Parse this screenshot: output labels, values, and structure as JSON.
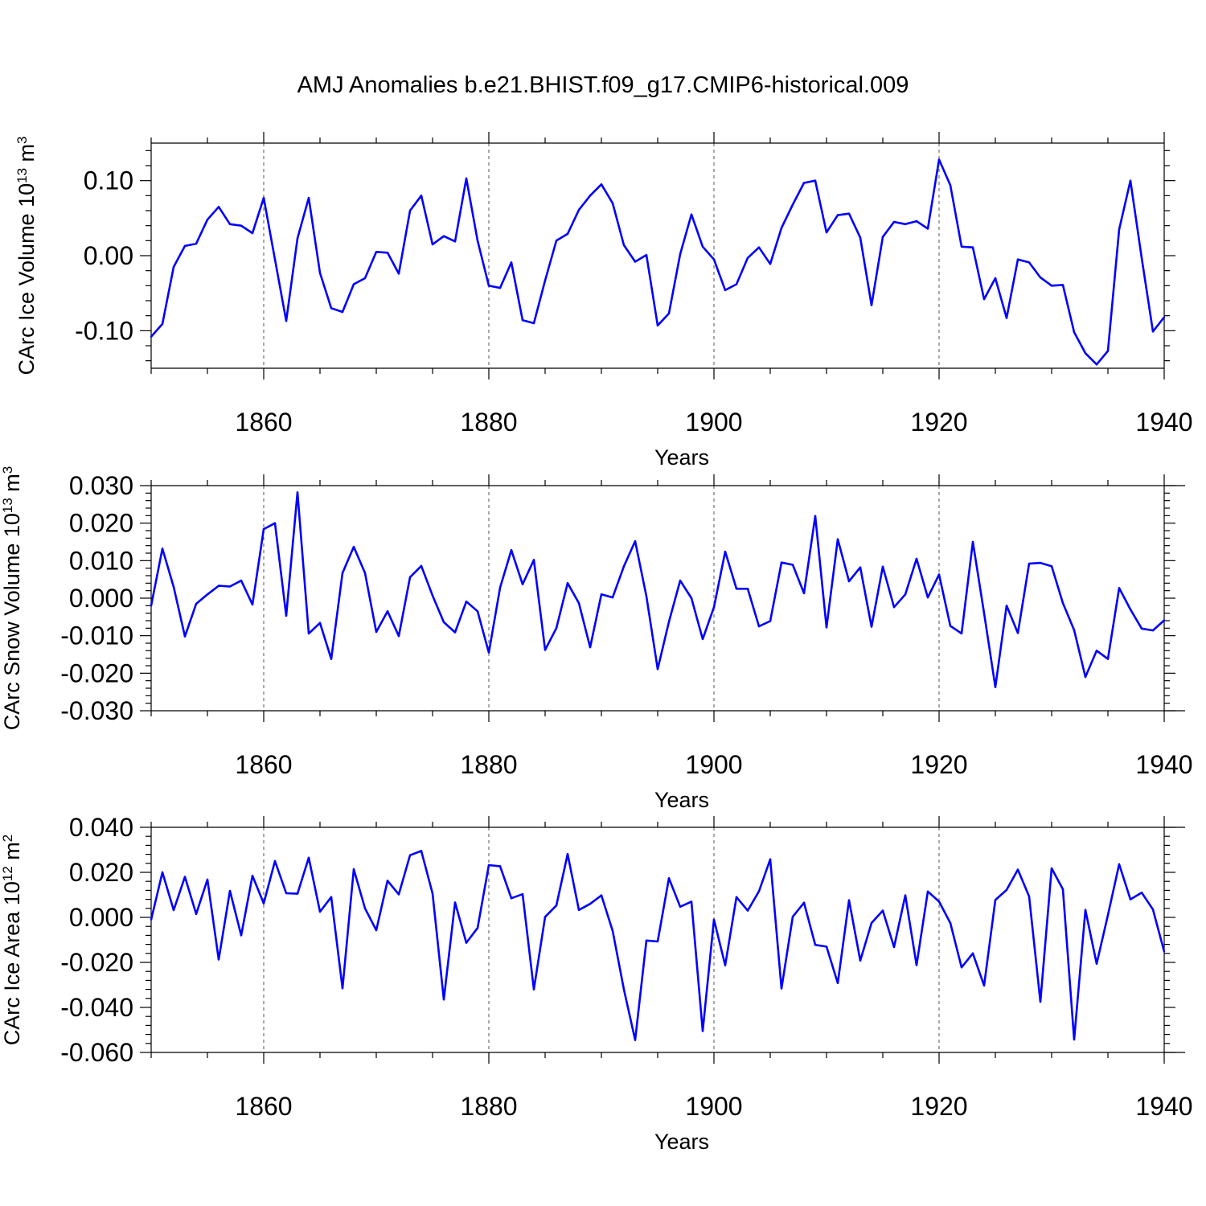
{
  "title": "AMJ Anomalies b.e21.BHIST.f09_g17.CMIP6-historical.009",
  "style": {
    "line_color": "#0000ff",
    "axis_color": "#000000",
    "grid_color": "#555555"
  },
  "chart_data": [
    {
      "type": "line",
      "ylabel_main": "CArc Ice Volume 10",
      "ylabel_exp": "13",
      "ylabel_unit": " m",
      "ylabel_unit_exp": "3",
      "xlabel": "Years",
      "xlim": [
        1850,
        1940
      ],
      "ylim": [
        -0.15,
        0.15
      ],
      "yticks": [
        -0.1,
        0.0,
        0.1
      ],
      "ytick_labels": [
        "-0.10",
        "0.00",
        "0.10"
      ],
      "xticks": [
        1860,
        1880,
        1900,
        1920,
        1940
      ],
      "xtick_labels": [
        "1860",
        "1880",
        "1900",
        "1920",
        "1940"
      ],
      "x_start": 1850,
      "values": [
        -0.108,
        -0.091,
        -0.015,
        0.013,
        0.016,
        0.048,
        0.065,
        0.042,
        0.04,
        0.03,
        0.077,
        -0.005,
        -0.087,
        0.023,
        0.077,
        -0.023,
        -0.07,
        -0.075,
        -0.038,
        -0.03,
        0.005,
        0.004,
        -0.024,
        0.06,
        0.08,
        0.015,
        0.026,
        0.019,
        0.103,
        0.02,
        -0.04,
        -0.043,
        -0.009,
        -0.086,
        -0.09,
        -0.033,
        0.02,
        0.029,
        0.061,
        0.08,
        0.095,
        0.07,
        0.014,
        -0.008,
        0.001,
        -0.093,
        -0.077,
        0.002,
        0.055,
        0.012,
        -0.005,
        -0.046,
        -0.038,
        -0.003,
        0.011,
        -0.011,
        0.037,
        0.068,
        0.097,
        0.1,
        0.031,
        0.054,
        0.056,
        0.024,
        -0.066,
        0.025,
        0.045,
        0.042,
        0.046,
        0.036,
        0.128,
        0.094,
        0.012,
        0.011,
        -0.058,
        -0.03,
        -0.083,
        -0.005,
        -0.009,
        -0.029,
        -0.04,
        -0.039,
        -0.102,
        -0.13,
        -0.145,
        -0.127,
        0.035,
        0.1,
        -0.003,
        -0.101,
        -0.082
      ]
    },
    {
      "type": "line",
      "ylabel_main": "CArc Snow Volume 10",
      "ylabel_exp": "13",
      "ylabel_unit": " m",
      "ylabel_unit_exp": "3",
      "xlabel": "Years",
      "xlim": [
        1850,
        1940
      ],
      "ylim": [
        -0.03,
        0.03
      ],
      "yticks": [
        -0.03,
        -0.02,
        -0.01,
        0.0,
        0.01,
        0.02,
        0.03
      ],
      "ytick_labels": [
        "-0.030",
        "-0.020",
        "-0.010",
        "0.000",
        "0.010",
        "0.020",
        "0.030"
      ],
      "xticks": [
        1860,
        1880,
        1900,
        1920,
        1940
      ],
      "xtick_labels": [
        "1860",
        "1880",
        "1900",
        "1920",
        "1940"
      ],
      "x_start": 1850,
      "values": [
        -0.002,
        0.0132,
        0.003,
        -0.0102,
        -0.0015,
        0.001,
        0.0033,
        0.0031,
        0.0047,
        -0.0017,
        0.0184,
        0.02,
        -0.0047,
        0.0282,
        -0.0094,
        -0.0066,
        -0.0162,
        0.0067,
        0.0137,
        0.0067,
        -0.009,
        -0.0035,
        -0.0101,
        0.0056,
        0.0086,
        0.0007,
        -0.0064,
        -0.0091,
        -0.0009,
        -0.0035,
        -0.0145,
        0.0028,
        0.0128,
        0.0037,
        0.0102,
        -0.0138,
        -0.008,
        0.004,
        -0.0013,
        -0.0131,
        0.001,
        0.0002,
        0.0085,
        0.0152,
        0.0005,
        -0.0189,
        -0.0063,
        0.0047,
        0.0,
        -0.0109,
        -0.0024,
        0.0124,
        0.0025,
        0.0025,
        -0.0075,
        -0.0061,
        0.0095,
        0.0089,
        0.0013,
        0.0219,
        -0.0078,
        0.0157,
        0.0045,
        0.0082,
        -0.0076,
        0.0084,
        -0.0024,
        0.001,
        0.0105,
        0.0002,
        0.0063,
        -0.0074,
        -0.0094,
        0.015,
        -0.004,
        -0.0237,
        -0.002,
        -0.0093,
        0.0092,
        0.0094,
        0.0085,
        -0.0013,
        -0.0085,
        -0.021,
        -0.014,
        -0.0162,
        0.0027,
        -0.003,
        -0.0081,
        -0.0086,
        -0.0059
      ]
    },
    {
      "type": "line",
      "ylabel_main": "CArc Ice Area 10",
      "ylabel_exp": "12",
      "ylabel_unit": " m",
      "ylabel_unit_exp": "2",
      "xlabel": "Years",
      "xlim": [
        1850,
        1940
      ],
      "ylim": [
        -0.06,
        0.04
      ],
      "yticks": [
        -0.06,
        -0.04,
        -0.02,
        0.0,
        0.02,
        0.04
      ],
      "ytick_labels": [
        "-0.060",
        "-0.040",
        "-0.020",
        "0.000",
        "0.020",
        "0.040"
      ],
      "xticks": [
        1860,
        1880,
        1900,
        1920,
        1940
      ],
      "xtick_labels": [
        "1860",
        "1880",
        "1900",
        "1920",
        "1940"
      ],
      "x_start": 1850,
      "values": [
        -0.001,
        0.02,
        0.0032,
        0.018,
        0.0015,
        0.0168,
        -0.0187,
        0.0118,
        -0.008,
        0.0185,
        0.0062,
        0.025,
        0.0107,
        0.0105,
        0.0265,
        0.0025,
        0.009,
        -0.0315,
        0.0214,
        0.004,
        -0.0057,
        0.0163,
        0.0102,
        0.0276,
        0.0295,
        0.0106,
        -0.0365,
        0.0066,
        -0.0113,
        -0.0047,
        0.0232,
        0.0227,
        0.0085,
        0.0103,
        -0.032,
        0.0002,
        0.0053,
        0.0281,
        0.0033,
        0.006,
        0.0098,
        -0.006,
        -0.032,
        -0.0545,
        -0.0103,
        -0.0107,
        0.0174,
        0.0047,
        0.007,
        -0.0505,
        -0.001,
        -0.0213,
        0.009,
        0.003,
        0.0116,
        0.0258,
        -0.0316,
        0.0003,
        0.0065,
        -0.0122,
        -0.013,
        -0.0292,
        0.0076,
        -0.0192,
        -0.0025,
        0.003,
        -0.0132,
        0.0098,
        -0.0212,
        0.0115,
        0.007,
        -0.0025,
        -0.0222,
        -0.016,
        -0.0303,
        0.0077,
        0.0122,
        0.0212,
        0.0093,
        -0.0375,
        0.0218,
        0.0125,
        -0.0543,
        0.0033,
        -0.0206,
        0.001,
        0.0236,
        0.008,
        0.011,
        0.0035,
        -0.0152
      ]
    }
  ]
}
